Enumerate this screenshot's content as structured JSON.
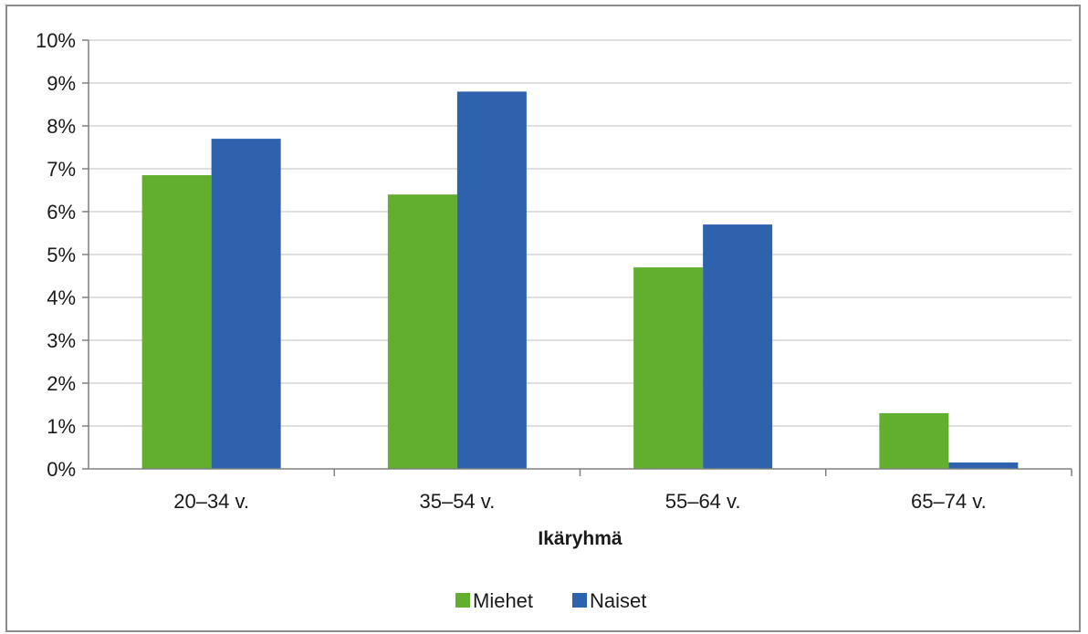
{
  "chart_data": {
    "type": "bar",
    "categories": [
      "20–34 v.",
      "35–54 v.",
      "55–64 v.",
      "65–74 v."
    ],
    "series": [
      {
        "name": "Miehet",
        "color": "#62ae2f",
        "values": [
          6.85,
          6.4,
          4.7,
          1.3
        ]
      },
      {
        "name": "Naiset",
        "color": "#2e62ad",
        "values": [
          7.7,
          8.8,
          5.7,
          0.15
        ]
      }
    ],
    "xlabel": "Ikäryhmä",
    "ylabel": "",
    "ylim": [
      0,
      10
    ],
    "yticks": [
      "0%",
      "1%",
      "2%",
      "3%",
      "4%",
      "5%",
      "6%",
      "7%",
      "8%",
      "9%",
      "10%"
    ],
    "grid": true,
    "legend_position": "bottom"
  }
}
